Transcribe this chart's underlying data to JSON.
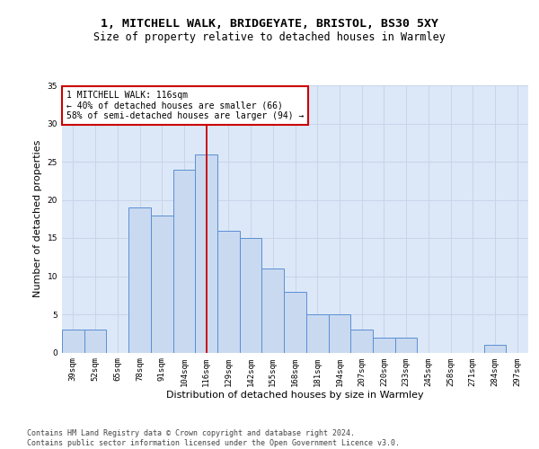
{
  "title_line1": "1, MITCHELL WALK, BRIDGEYATE, BRISTOL, BS30 5XY",
  "title_line2": "Size of property relative to detached houses in Warmley",
  "xlabel": "Distribution of detached houses by size in Warmley",
  "ylabel": "Number of detached properties",
  "categories": [
    "39sqm",
    "52sqm",
    "65sqm",
    "78sqm",
    "91sqm",
    "104sqm",
    "116sqm",
    "129sqm",
    "142sqm",
    "155sqm",
    "168sqm",
    "181sqm",
    "194sqm",
    "207sqm",
    "220sqm",
    "233sqm",
    "245sqm",
    "258sqm",
    "271sqm",
    "284sqm",
    "297sqm"
  ],
  "values": [
    3,
    3,
    0,
    19,
    18,
    24,
    26,
    16,
    15,
    11,
    8,
    5,
    5,
    3,
    2,
    2,
    0,
    0,
    0,
    1,
    0
  ],
  "bar_color": "#c9d9f0",
  "bar_edge_color": "#5b8fd4",
  "vline_index": 6,
  "vline_color": "#cc0000",
  "annotation_text": "1 MITCHELL WALK: 116sqm\n← 40% of detached houses are smaller (66)\n58% of semi-detached houses are larger (94) →",
  "annotation_box_color": "#ffffff",
  "annotation_box_edge": "#cc0000",
  "ylim": [
    0,
    35
  ],
  "yticks": [
    0,
    5,
    10,
    15,
    20,
    25,
    30,
    35
  ],
  "grid_color": "#c8d4e8",
  "background_color": "#dce8f8",
  "footer_text": "Contains HM Land Registry data © Crown copyright and database right 2024.\nContains public sector information licensed under the Open Government Licence v3.0.",
  "title_fontsize": 9.5,
  "subtitle_fontsize": 8.5,
  "tick_fontsize": 6.5,
  "ylabel_fontsize": 8,
  "xlabel_fontsize": 8,
  "annotation_fontsize": 7,
  "footer_fontsize": 6
}
